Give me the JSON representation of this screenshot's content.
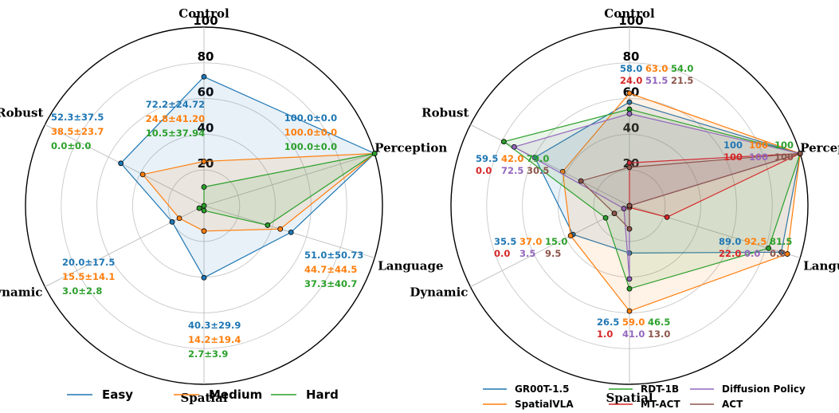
{
  "chart_data": [
    {
      "type": "radar",
      "axes": [
        "Control",
        "Perception",
        "Language",
        "Spatial",
        "Dynamic",
        "Robust"
      ],
      "rlim": [
        0,
        100
      ],
      "rticks": [
        20,
        40,
        60,
        80,
        100
      ],
      "rtick_labels": [
        "20",
        "40",
        "60",
        "80",
        "100"
      ],
      "legend_position": "bottom",
      "series": [
        {
          "name": "Easy",
          "color": "#1f77b4",
          "values": [
            72.2,
            100.0,
            51.0,
            40.3,
            20.0,
            52.3
          ],
          "labels": [
            "72.2±24.72",
            "100.0±0.0",
            "51.0±50.73",
            "40.3±29.9",
            "20.0±17.5",
            "52.3±37.5"
          ]
        },
        {
          "name": "Medium",
          "color": "#ff7f0e",
          "values": [
            24.8,
            100.0,
            44.7,
            14.2,
            15.5,
            38.5
          ],
          "labels": [
            "24.8±41.20",
            "100.0±0.0",
            "44.7±44.5",
            "14.2±19.4",
            "15.5±14.1",
            "38.5±23.7"
          ]
        },
        {
          "name": "Hard",
          "color": "#2ca02c",
          "values": [
            10.5,
            100.0,
            37.3,
            2.7,
            3.0,
            0.0
          ],
          "labels": [
            "10.5±37.94",
            "100.0±0.0",
            "37.3±40.7",
            "2.7±3.9",
            "3.0±2.8",
            "0.0±0.0"
          ]
        }
      ]
    },
    {
      "type": "radar",
      "axes": [
        "Control",
        "Perception",
        "Language",
        "Spatial",
        "Dynamic",
        "Robust"
      ],
      "rlim": [
        0,
        100
      ],
      "rticks": [
        20,
        40,
        60,
        80,
        100
      ],
      "rtick_labels": [
        "20",
        "40",
        "60",
        "80",
        "100"
      ],
      "legend_position": "bottom",
      "series": [
        {
          "name": "GR00T-1.5",
          "color": "#1f77b4",
          "values": [
            58.0,
            100,
            89.0,
            26.5,
            35.5,
            59.5
          ],
          "labels": [
            "58.0",
            "100",
            "89.0",
            "26.5",
            "35.5",
            "59.5"
          ]
        },
        {
          "name": "SpatialVLA",
          "color": "#ff7f0e",
          "values": [
            63.0,
            100,
            92.5,
            59.0,
            37.0,
            42.0
          ],
          "labels": [
            "63.0",
            "100",
            "92.5",
            "59.0",
            "37.0",
            "42.0"
          ]
        },
        {
          "name": "RDT-1B",
          "color": "#2ca02c",
          "values": [
            54.0,
            100,
            81.5,
            46.5,
            15.0,
            79.0
          ],
          "labels": [
            "54.0",
            "100",
            "81.5",
            "46.5",
            "15.0",
            "79.0"
          ]
        },
        {
          "name": "MT-ACT",
          "color": "#d62728",
          "values": [
            24.0,
            100,
            22.0,
            1.0,
            0.0,
            0.0
          ],
          "labels": [
            "24.0",
            "100",
            "22.0",
            "1.0",
            "0.0",
            "0.0"
          ]
        },
        {
          "name": "Diffusion Policy",
          "color": "#9467bd",
          "values": [
            51.5,
            100,
            0.0,
            41.0,
            3.5,
            72.5
          ],
          "labels": [
            "51.5",
            "100",
            "0.0",
            "41.0",
            "3.5",
            "72.5"
          ]
        },
        {
          "name": "ACT",
          "color": "#8c564b",
          "values": [
            21.5,
            100,
            0.0,
            13.0,
            9.5,
            30.5
          ],
          "labels": [
            "21.5",
            "100",
            "0.0",
            "13.0",
            "9.5",
            "30.5"
          ]
        }
      ]
    }
  ]
}
